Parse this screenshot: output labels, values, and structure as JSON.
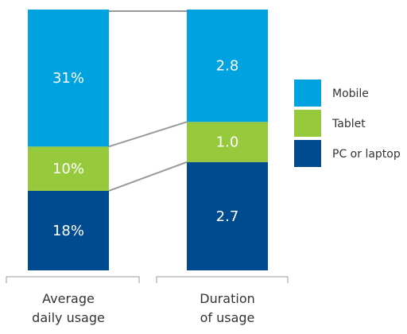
{
  "chart_data": {
    "type": "stacked-bar-normalized",
    "categories": [
      "Average\ndaily usage",
      "Duration\nof usage"
    ],
    "series": [
      {
        "name": "PC or laptop",
        "color": "#004a8f",
        "values": [
          18,
          2.7
        ],
        "value_labels": [
          "18%",
          "2.7"
        ]
      },
      {
        "name": "Tablet",
        "color": "#97c93d",
        "values": [
          10,
          1.0
        ],
        "value_labels": [
          "10%",
          "1.0"
        ]
      },
      {
        "name": "Mobile",
        "color": "#00a3e0",
        "values": [
          31,
          2.8
        ],
        "value_labels": [
          "31%",
          "2.8"
        ]
      }
    ],
    "legend": "right"
  }
}
